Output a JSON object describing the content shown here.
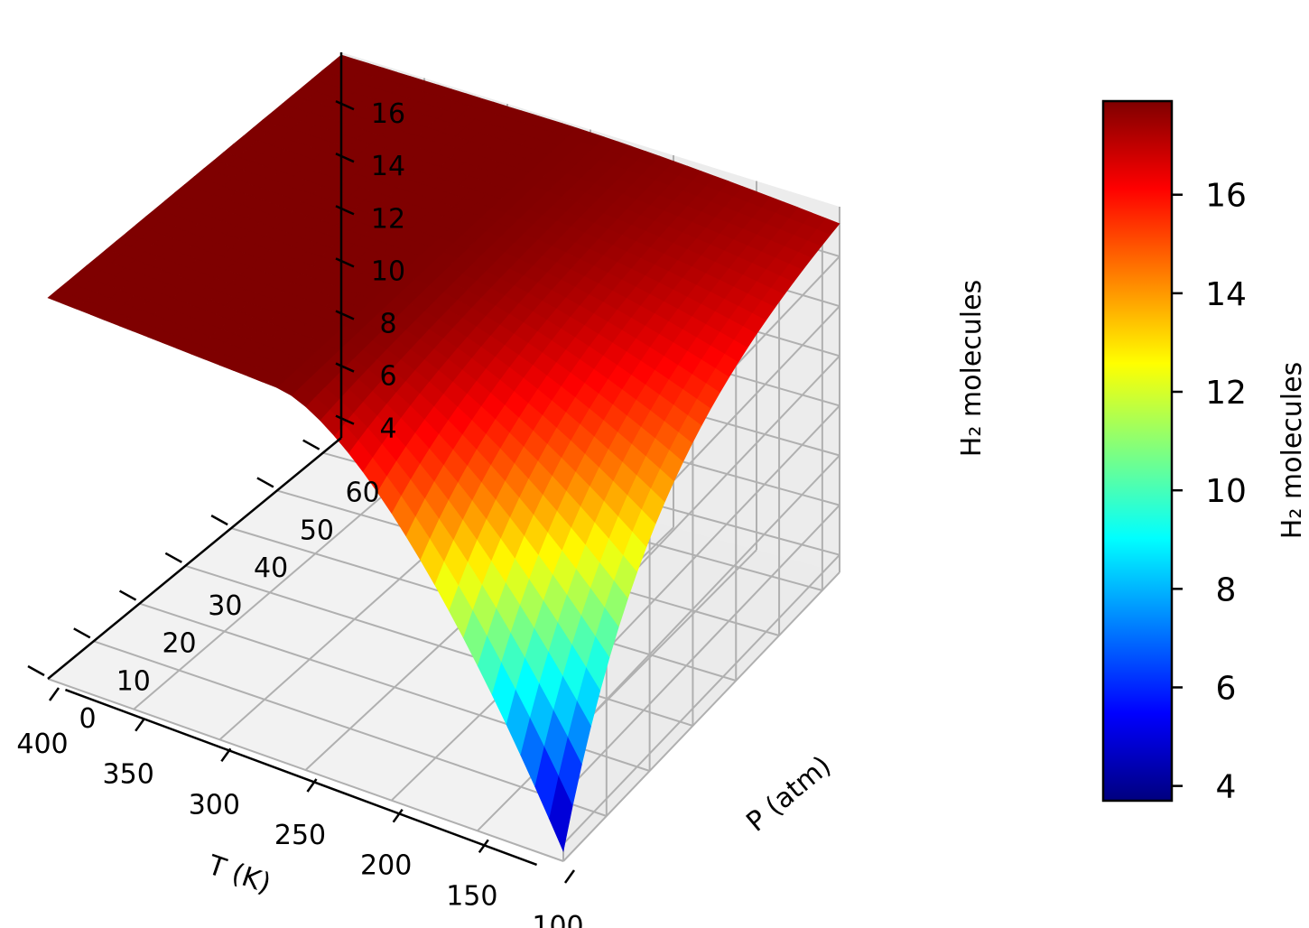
{
  "chart_data": {
    "type": "surface3d",
    "title": "",
    "xlabel": "T (K)",
    "ylabel": "P (atm)",
    "zlabel": "H₂ molecules",
    "colorbar_label": "H₂ molecules",
    "colormap": "jet",
    "colormap_stops": [
      "#00007f",
      "#0000ff",
      "#007fff",
      "#00ffff",
      "#7fff7f",
      "#ffff00",
      "#ff7f00",
      "#ff0000",
      "#7f0000"
    ],
    "x_range": [
      100,
      400
    ],
    "y_range": [
      0,
      64
    ],
    "z_range": [
      3.3,
      18
    ],
    "x_ticks": [
      400,
      350,
      300,
      250,
      200,
      150,
      100
    ],
    "y_ticks": [
      0,
      10,
      20,
      30,
      40,
      50,
      60
    ],
    "z_ticks": [
      4,
      6,
      8,
      10,
      12,
      14,
      16
    ],
    "colorbar_range": [
      3.7,
      17.9
    ],
    "colorbar_ticks": [
      4,
      6,
      8,
      10,
      12,
      14,
      16
    ],
    "grid": true,
    "surface_corners": [
      {
        "T": 400,
        "P": 0,
        "z": 3.7
      },
      {
        "T": 400,
        "P": 64,
        "z": 17.9
      },
      {
        "T": 100,
        "P": 0,
        "z": 17.9
      },
      {
        "T": 100,
        "P": 64,
        "z": 17.9
      }
    ],
    "saturation_value": 17.9
  }
}
